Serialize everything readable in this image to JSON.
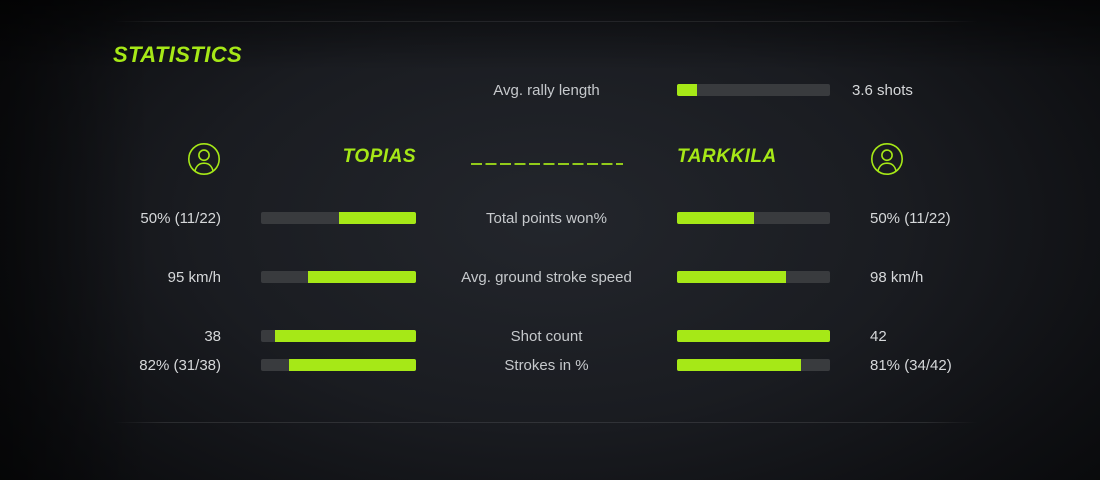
{
  "title": "STATISTICS",
  "theme": {
    "accent": "#a6e817",
    "bar_track": "#393b3e",
    "label_color": "#c6c9cc",
    "value_color": "#d6d8da"
  },
  "summary": {
    "label": "Avg. rally length",
    "value": "3.6 shots",
    "fill_pct": 13
  },
  "players": {
    "left": {
      "name": "TOPIAS"
    },
    "right": {
      "name": "TARKKILA"
    }
  },
  "stats": [
    {
      "label": "Total points won%",
      "left": {
        "value": "50% (11/22)",
        "fill_pct": 50
      },
      "right": {
        "value": "50% (11/22)",
        "fill_pct": 50
      }
    },
    {
      "label": "Avg. ground stroke speed",
      "left": {
        "value": "95 km/h",
        "fill_pct": 70
      },
      "right": {
        "value": "98 km/h",
        "fill_pct": 71
      }
    },
    {
      "label": "Shot count",
      "left": {
        "value": "38",
        "fill_pct": 91
      },
      "right": {
        "value": "42",
        "fill_pct": 100
      }
    },
    {
      "label": "Strokes in %",
      "left": {
        "value": "82% (31/38)",
        "fill_pct": 82
      },
      "right": {
        "value": "81% (34/42)",
        "fill_pct": 81
      }
    }
  ]
}
